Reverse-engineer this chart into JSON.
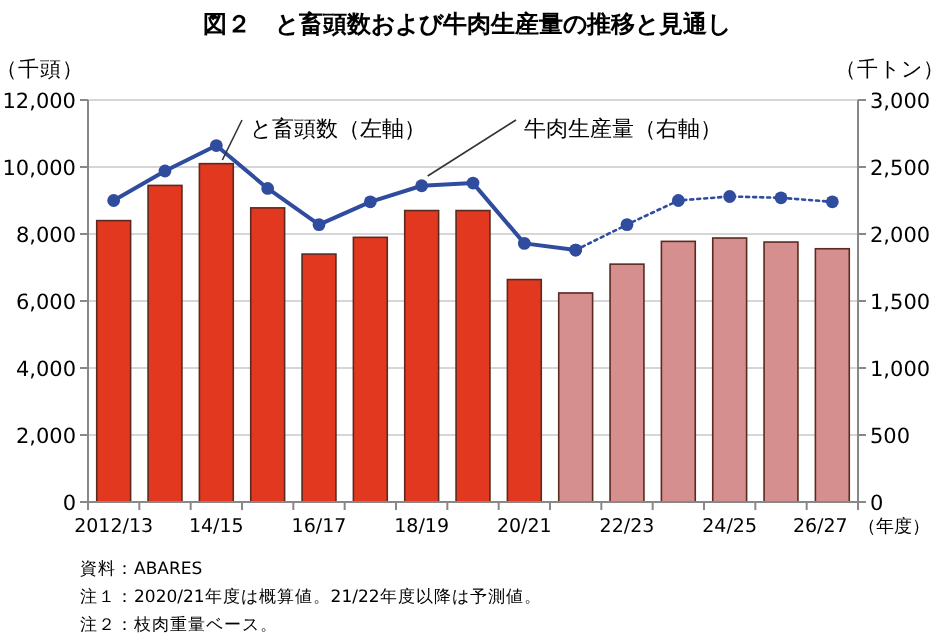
{
  "chart_data": {
    "type": "bar",
    "title": "図２　と畜頭数および牛肉生産量の推移と見通し",
    "categories": [
      "2012/13",
      null,
      "14/15",
      null,
      "16/17",
      null,
      "18/19",
      null,
      "20/21",
      null,
      "22/23",
      null,
      "24/25",
      null,
      "26/27"
    ],
    "series": [
      {
        "name": "と畜頭数（左軸）",
        "colors": [
          "#e2381f",
          "#e2381f",
          "#e2381f",
          "#e2381f",
          "#e2381f",
          "#e2381f",
          "#e2381f",
          "#e2381f",
          "#e2381f",
          "#d68f8f",
          "#d68f8f",
          "#d68f8f",
          "#d68f8f",
          "#d68f8f",
          "#d68f8f"
        ],
        "values": [
          8400,
          9450,
          10100,
          8780,
          7400,
          7900,
          8700,
          8700,
          6640,
          6240,
          7100,
          7780,
          7880,
          7760,
          7560
        ]
      },
      {
        "name": "牛肉生産量（右軸）",
        "type": "line",
        "axis": "y2",
        "color": "#2f4c9f",
        "line_style": "solid",
        "values": [
          2250,
          2470,
          2660,
          2340,
          2070,
          2240,
          2360,
          2380,
          1930,
          1880,
          null,
          null,
          null,
          null,
          null
        ]
      },
      {
        "type": "line",
        "axis": "y2",
        "color": "#2f4c9f",
        "line_style": "dotted",
        "values": [
          null,
          null,
          null,
          null,
          null,
          null,
          null,
          null,
          null,
          1880,
          2070,
          2250,
          2280,
          2270,
          2240
        ]
      }
    ],
    "ylabel": "（千頭）",
    "y2label": "（千トン）",
    "xlabel": "（年度）",
    "ylim": [
      0,
      12000
    ],
    "yticks": [
      0,
      {
        "value": 2000,
        "label": "2,000"
      },
      {
        "value": 4000,
        "label": "4,000"
      },
      {
        "value": 6000,
        "label": "6,000"
      },
      {
        "value": 8000,
        "label": "8,000"
      },
      {
        "value": 10000,
        "label": "10,000"
      },
      {
        "value": 12000,
        "label": "12,000"
      }
    ],
    "y2lim": [
      0,
      3000
    ],
    "y2ticks": [
      0,
      500,
      {
        "value": 1000,
        "label": "1,000"
      },
      {
        "value": 1500,
        "label": "1,500"
      },
      {
        "value": 2000,
        "label": "2,000"
      },
      {
        "value": 2500,
        "label": "2,500"
      },
      {
        "value": 3000,
        "label": "3,000"
      }
    ],
    "grid": "y",
    "marker": "circle",
    "annotations": [
      "資料：ABARES",
      "注１：2020/21年度は概算値。21/22年度以降は予測値。",
      "注２：枝肉重量ベース。"
    ]
  }
}
